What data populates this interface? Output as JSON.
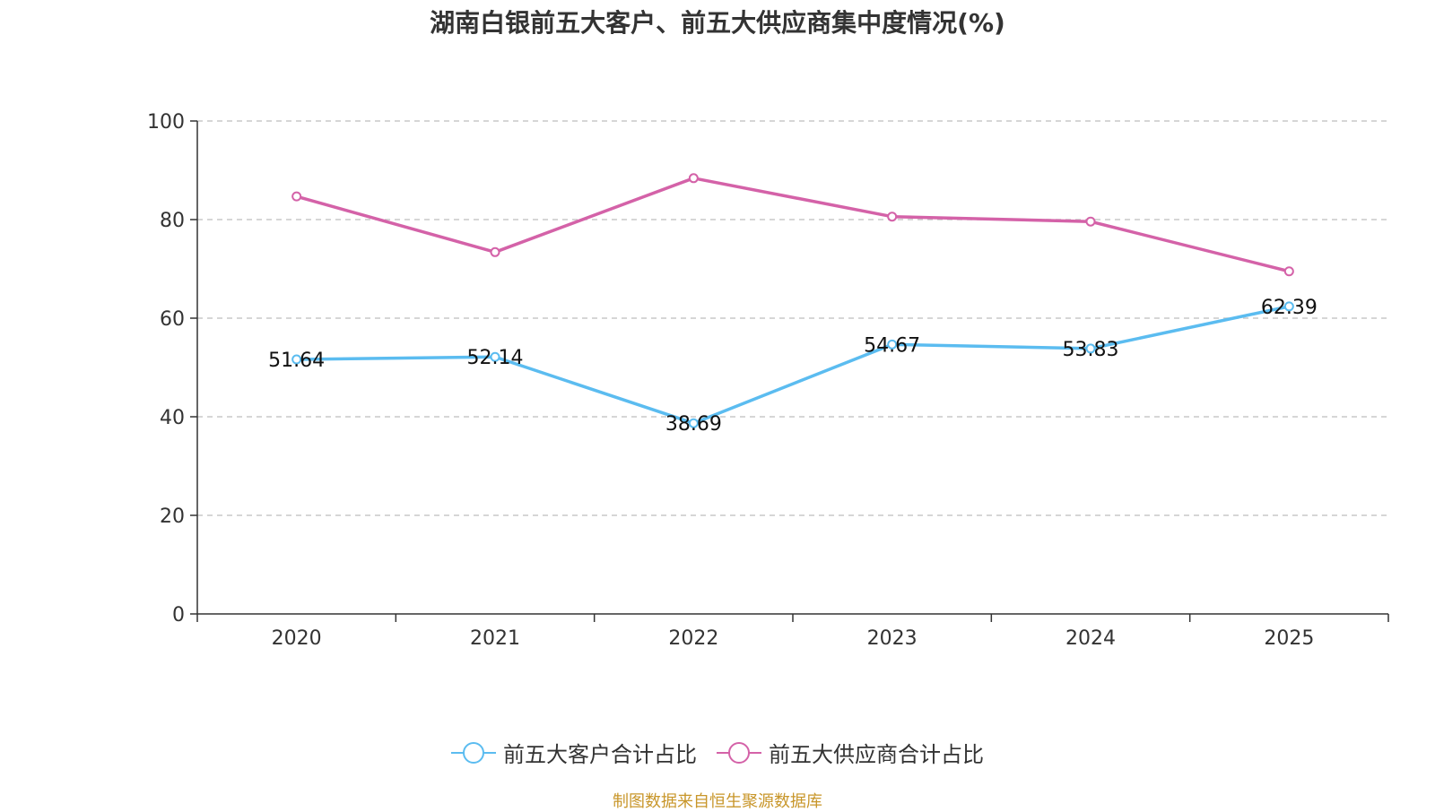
{
  "chart_data": {
    "type": "line",
    "title": "湖南白银前五大客户、前五大供应商集中度情况(%)",
    "categories": [
      "2020",
      "2021",
      "2022",
      "2023",
      "2024",
      "2025"
    ],
    "ylim": [
      0,
      100
    ],
    "yticks": [
      0,
      20,
      40,
      60,
      80,
      100
    ],
    "grid": true,
    "legend_position": "bottom",
    "series": [
      {
        "name": "前五大客户合计占比",
        "color": "#5bbcf0",
        "values": [
          51.64,
          52.14,
          38.69,
          54.67,
          53.83,
          62.39
        ],
        "show_labels": true
      },
      {
        "name": "前五大供应商合计占比",
        "color": "#d462a8",
        "values": [
          84.7,
          73.4,
          88.4,
          80.6,
          79.6,
          69.5
        ],
        "show_labels": false
      }
    ],
    "source": "制图数据来自恒生聚源数据库"
  }
}
